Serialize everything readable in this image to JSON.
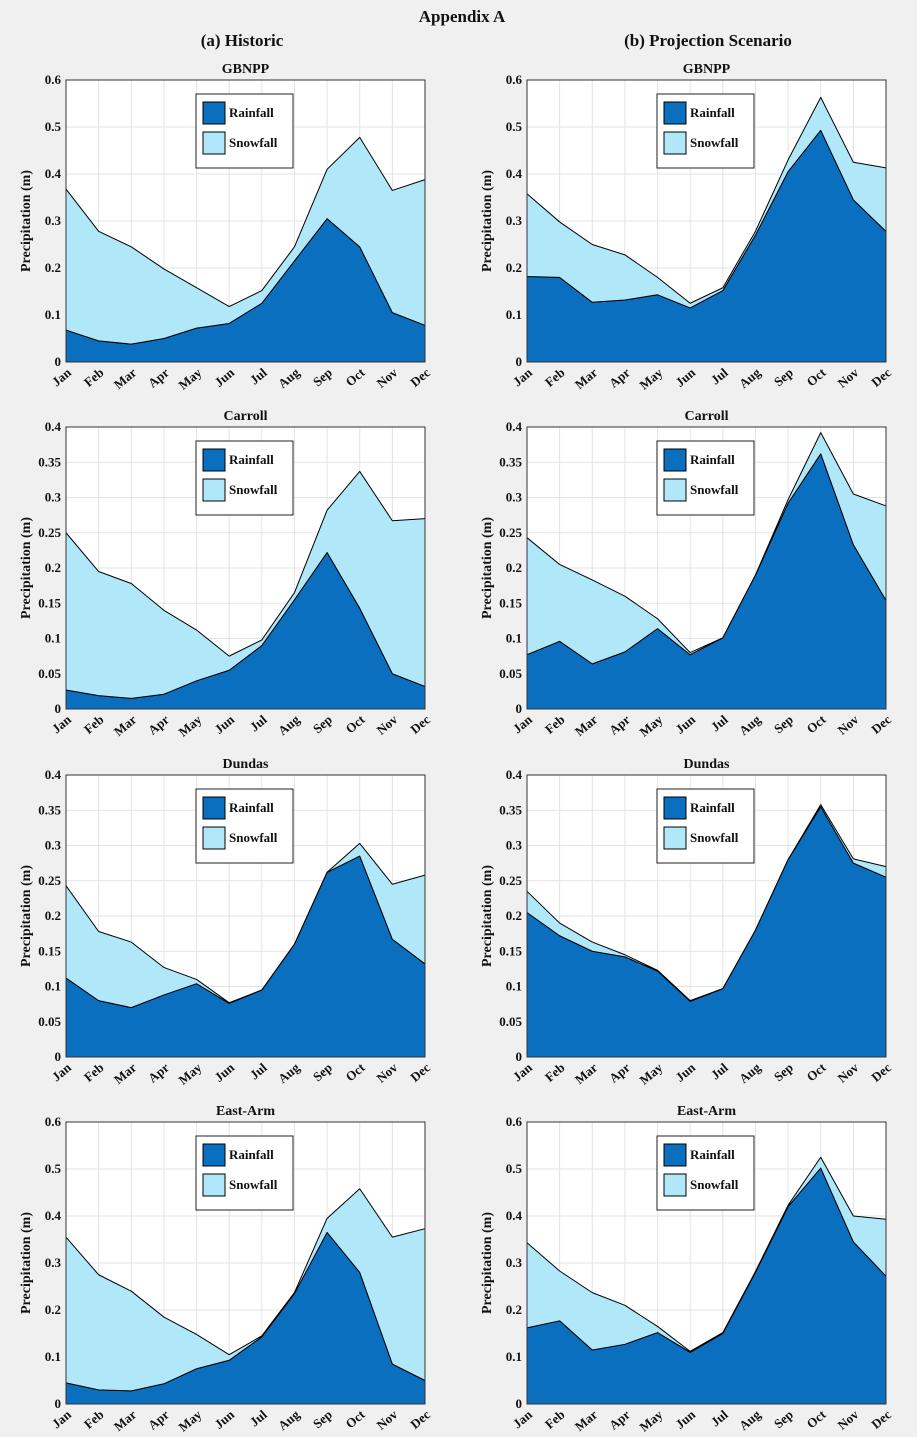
{
  "title": "Appendix A",
  "panels": [
    "(a) Historic",
    "(b) Projection Scenario"
  ],
  "chart_data": [
    {
      "type": "stacked-area",
      "title": "GBNPP",
      "ylabel": "Precipitation (m)",
      "categories": [
        "Jan",
        "Feb",
        "Mar",
        "Apr",
        "May",
        "Jun",
        "Jul",
        "Aug",
        "Sep",
        "Oct",
        "Nov",
        "Dec"
      ],
      "series": [
        {
          "name": "Rainfall",
          "color": "#0a6fbf",
          "values": [
            0.068,
            0.045,
            0.038,
            0.05,
            0.072,
            0.082,
            0.125,
            0.215,
            0.305,
            0.245,
            0.105,
            0.078
          ]
        },
        {
          "name": "Snowfall",
          "color": "#b0e8fa",
          "values": [
            0.3,
            0.233,
            0.207,
            0.148,
            0.086,
            0.036,
            0.027,
            0.03,
            0.105,
            0.233,
            0.26,
            0.31
          ]
        }
      ],
      "ylim": [
        0,
        0.6
      ],
      "yticks": [
        0,
        0.1,
        0.2,
        0.3,
        0.4,
        0.5,
        0.6
      ],
      "grid": true
    },
    {
      "type": "stacked-area",
      "title": "GBNPP",
      "ylabel": "Precipitation (m)",
      "categories": [
        "Jan",
        "Feb",
        "Mar",
        "Apr",
        "May",
        "Jun",
        "Jul",
        "Aug",
        "Sep",
        "Oct",
        "Nov",
        "Dec"
      ],
      "series": [
        {
          "name": "Rainfall",
          "color": "#0a6fbf",
          "values": [
            0.182,
            0.18,
            0.127,
            0.132,
            0.143,
            0.115,
            0.152,
            0.27,
            0.405,
            0.493,
            0.345,
            0.278
          ]
        },
        {
          "name": "Snowfall",
          "color": "#b0e8fa",
          "values": [
            0.176,
            0.118,
            0.123,
            0.096,
            0.037,
            0.01,
            0.006,
            0.008,
            0.025,
            0.07,
            0.08,
            0.135
          ]
        }
      ],
      "ylim": [
        0,
        0.6
      ],
      "yticks": [
        0,
        0.1,
        0.2,
        0.3,
        0.4,
        0.5,
        0.6
      ],
      "grid": true
    },
    {
      "type": "stacked-area",
      "title": "Carroll",
      "ylabel": "Precipitation (m)",
      "categories": [
        "Jan",
        "Feb",
        "Mar",
        "Apr",
        "May",
        "Jun",
        "Jul",
        "Aug",
        "Sep",
        "Oct",
        "Nov",
        "Dec"
      ],
      "series": [
        {
          "name": "Rainfall",
          "color": "#0a6fbf",
          "values": [
            0.027,
            0.019,
            0.015,
            0.021,
            0.04,
            0.055,
            0.09,
            0.155,
            0.222,
            0.143,
            0.05,
            0.032
          ]
        },
        {
          "name": "Snowfall",
          "color": "#b0e8fa",
          "values": [
            0.223,
            0.176,
            0.163,
            0.119,
            0.072,
            0.02,
            0.008,
            0.01,
            0.06,
            0.194,
            0.217,
            0.238
          ]
        }
      ],
      "ylim": [
        0,
        0.4
      ],
      "yticks": [
        0,
        0.05,
        0.1,
        0.15,
        0.2,
        0.25,
        0.3,
        0.35,
        0.4
      ],
      "grid": true
    },
    {
      "type": "stacked-area",
      "title": "Carroll",
      "ylabel": "Precipitation (m)",
      "categories": [
        "Jan",
        "Feb",
        "Mar",
        "Apr",
        "May",
        "Jun",
        "Jul",
        "Aug",
        "Sep",
        "Oct",
        "Nov",
        "Dec"
      ],
      "series": [
        {
          "name": "Rainfall",
          "color": "#0a6fbf",
          "values": [
            0.077,
            0.096,
            0.064,
            0.081,
            0.114,
            0.077,
            0.101,
            0.19,
            0.292,
            0.362,
            0.233,
            0.154
          ]
        },
        {
          "name": "Snowfall",
          "color": "#b0e8fa",
          "values": [
            0.166,
            0.109,
            0.119,
            0.079,
            0.014,
            0.003,
            0,
            0,
            0.005,
            0.03,
            0.072,
            0.134
          ]
        }
      ],
      "ylim": [
        0,
        0.4
      ],
      "yticks": [
        0,
        0.05,
        0.1,
        0.15,
        0.2,
        0.25,
        0.3,
        0.35,
        0.4
      ],
      "grid": true
    },
    {
      "type": "stacked-area",
      "title": "Dundas",
      "ylabel": "Precipitation (m)",
      "categories": [
        "Jan",
        "Feb",
        "Mar",
        "Apr",
        "May",
        "Jun",
        "Jul",
        "Aug",
        "Sep",
        "Oct",
        "Nov",
        "Dec"
      ],
      "series": [
        {
          "name": "Rainfall",
          "color": "#0a6fbf",
          "values": [
            0.112,
            0.08,
            0.07,
            0.088,
            0.104,
            0.076,
            0.095,
            0.16,
            0.262,
            0.285,
            0.167,
            0.132
          ]
        },
        {
          "name": "Snowfall",
          "color": "#b0e8fa",
          "values": [
            0.131,
            0.098,
            0.093,
            0.039,
            0.006,
            0.001,
            0,
            0,
            0,
            0.018,
            0.078,
            0.126
          ]
        }
      ],
      "ylim": [
        0,
        0.4
      ],
      "yticks": [
        0,
        0.05,
        0.1,
        0.15,
        0.2,
        0.25,
        0.3,
        0.35,
        0.4
      ],
      "grid": true
    },
    {
      "type": "stacked-area",
      "title": "Dundas",
      "ylabel": "Precipitation (m)",
      "categories": [
        "Jan",
        "Feb",
        "Mar",
        "Apr",
        "May",
        "Jun",
        "Jul",
        "Aug",
        "Sep",
        "Oct",
        "Nov",
        "Dec"
      ],
      "series": [
        {
          "name": "Rainfall",
          "color": "#0a6fbf",
          "values": [
            0.205,
            0.172,
            0.15,
            0.142,
            0.122,
            0.079,
            0.097,
            0.18,
            0.28,
            0.355,
            0.275,
            0.255
          ]
        },
        {
          "name": "Snowfall",
          "color": "#b0e8fa",
          "values": [
            0.03,
            0.018,
            0.013,
            0.003,
            0.001,
            0.001,
            0,
            0,
            0,
            0.003,
            0.006,
            0.015
          ]
        }
      ],
      "ylim": [
        0,
        0.4
      ],
      "yticks": [
        0,
        0.05,
        0.1,
        0.15,
        0.2,
        0.25,
        0.3,
        0.35,
        0.4
      ],
      "grid": true
    },
    {
      "type": "stacked-area",
      "title": "East-Arm",
      "ylabel": "Precipitation (m)",
      "categories": [
        "Jan",
        "Feb",
        "Mar",
        "Apr",
        "May",
        "Jun",
        "Jul",
        "Aug",
        "Sep",
        "Oct",
        "Nov",
        "Dec"
      ],
      "series": [
        {
          "name": "Rainfall",
          "color": "#0a6fbf",
          "values": [
            0.045,
            0.03,
            0.028,
            0.043,
            0.075,
            0.093,
            0.143,
            0.235,
            0.365,
            0.28,
            0.085,
            0.05
          ]
        },
        {
          "name": "Snowfall",
          "color": "#b0e8fa",
          "values": [
            0.31,
            0.245,
            0.212,
            0.142,
            0.073,
            0.012,
            0.002,
            0.002,
            0.03,
            0.178,
            0.27,
            0.323
          ]
        }
      ],
      "ylim": [
        0,
        0.6
      ],
      "yticks": [
        0,
        0.1,
        0.2,
        0.3,
        0.4,
        0.5,
        0.6
      ],
      "grid": true
    },
    {
      "type": "stacked-area",
      "title": "East-Arm",
      "ylabel": "Precipitation (m)",
      "categories": [
        "Jan",
        "Feb",
        "Mar",
        "Apr",
        "May",
        "Jun",
        "Jul",
        "Aug",
        "Sep",
        "Oct",
        "Nov",
        "Dec"
      ],
      "series": [
        {
          "name": "Rainfall",
          "color": "#0a6fbf",
          "values": [
            0.162,
            0.177,
            0.115,
            0.127,
            0.152,
            0.11,
            0.15,
            0.28,
            0.42,
            0.502,
            0.345,
            0.272
          ]
        },
        {
          "name": "Snowfall",
          "color": "#b0e8fa",
          "values": [
            0.181,
            0.106,
            0.122,
            0.083,
            0.013,
            0.002,
            0.002,
            0.002,
            0.003,
            0.023,
            0.055,
            0.121
          ]
        }
      ],
      "ylim": [
        0,
        0.6
      ],
      "yticks": [
        0,
        0.1,
        0.2,
        0.3,
        0.4,
        0.5,
        0.6
      ],
      "grid": true
    }
  ]
}
